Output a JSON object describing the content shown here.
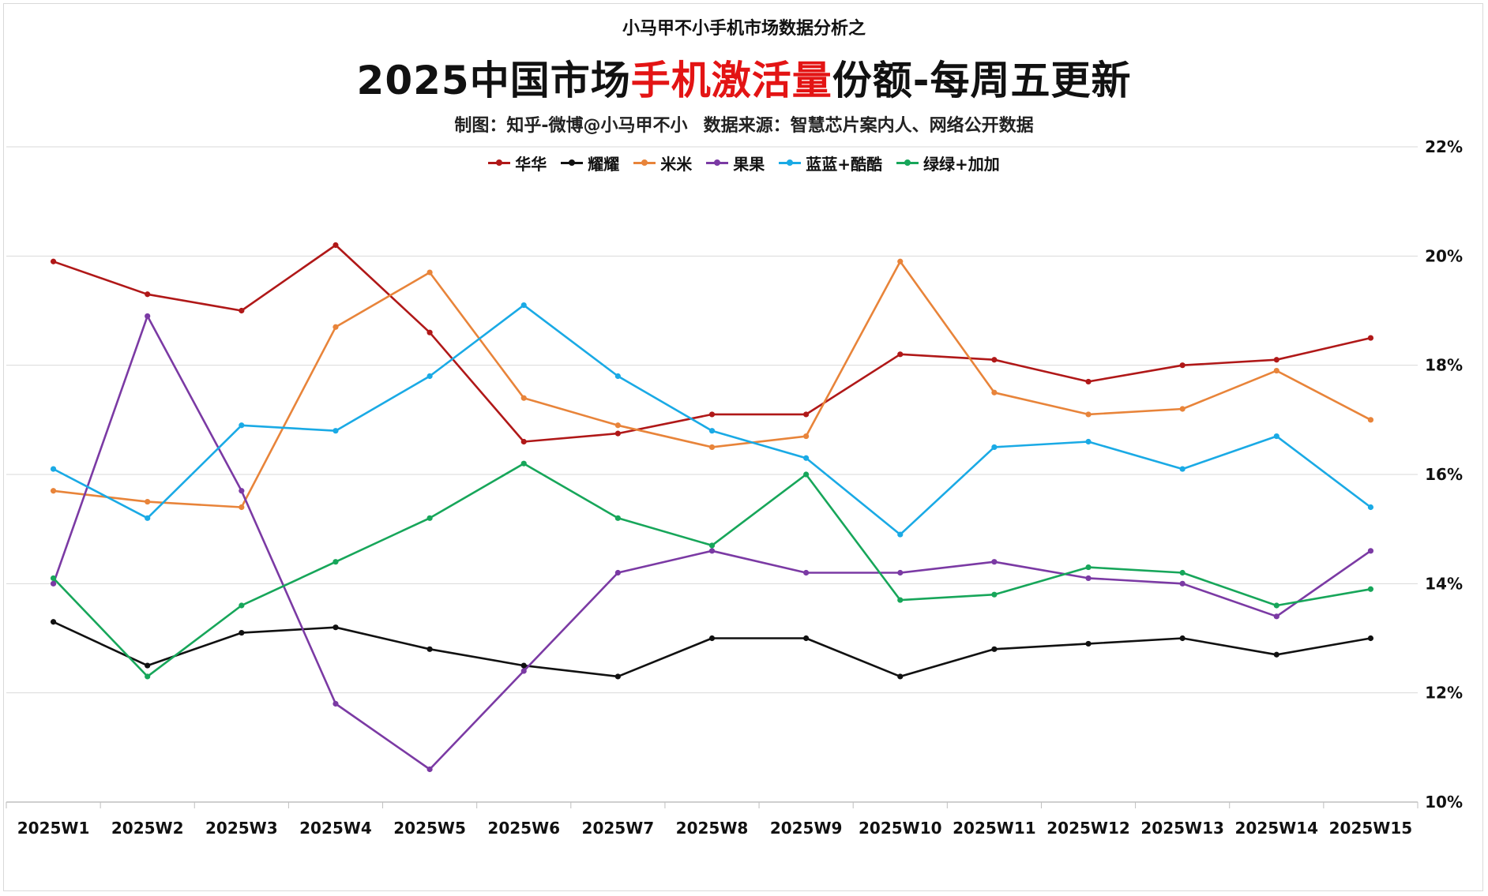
{
  "header": {
    "pretitle": "小马甲不小手机市场数据分析之",
    "title_part1": "2025中国市场",
    "title_highlight": "手机激活量",
    "title_part2": "份额-每周五更新",
    "credit_left": "制图：知乎-微博@小马甲不小",
    "credit_right": "数据来源：智慧芯片案内人、网络公开数据"
  },
  "colors": {
    "highlight": "#e31414",
    "grid": "#d9d9d9"
  },
  "chart_data": {
    "type": "line",
    "categories": [
      "2025W1",
      "2025W2",
      "2025W3",
      "2025W4",
      "2025W5",
      "2025W6",
      "2025W7",
      "2025W8",
      "2025W9",
      "2025W10",
      "2025W11",
      "2025W12",
      "2025W13",
      "2025W14",
      "2025W15"
    ],
    "y_ticks": [
      "10%",
      "12%",
      "14%",
      "16%",
      "18%",
      "20%",
      "22%"
    ],
    "ylim": [
      10,
      22
    ],
    "y_unit": "%",
    "y_axis_side": "right",
    "grid": true,
    "legend_position": "top-center",
    "series": [
      {
        "name": "华华",
        "color": "#b01818",
        "values": [
          19.9,
          19.3,
          19.0,
          20.2,
          18.6,
          16.6,
          16.75,
          17.1,
          17.1,
          18.2,
          18.1,
          17.7,
          18.0,
          18.1,
          18.5
        ]
      },
      {
        "name": "耀耀",
        "color": "#111111",
        "values": [
          13.3,
          12.5,
          13.1,
          13.2,
          12.8,
          12.5,
          12.3,
          13.0,
          13.0,
          12.3,
          12.8,
          12.9,
          13.0,
          12.7,
          13.0
        ]
      },
      {
        "name": "米米",
        "color": "#e8843a",
        "values": [
          15.7,
          15.5,
          15.4,
          18.7,
          19.7,
          17.4,
          16.9,
          16.5,
          16.7,
          19.9,
          17.5,
          17.1,
          17.2,
          17.9,
          17.0
        ]
      },
      {
        "name": "果果",
        "color": "#7b3aa4",
        "values": [
          14.0,
          18.9,
          15.7,
          11.8,
          10.6,
          12.4,
          14.2,
          14.6,
          14.2,
          14.2,
          14.4,
          14.1,
          14.0,
          13.4,
          14.6
        ]
      },
      {
        "name": "蓝蓝+酷酷",
        "color": "#1aaae5",
        "values": [
          16.1,
          15.2,
          16.9,
          16.8,
          17.8,
          19.1,
          17.8,
          16.8,
          16.3,
          14.9,
          16.5,
          16.6,
          16.1,
          16.7,
          15.4
        ]
      },
      {
        "name": "绿绿+加加",
        "color": "#17a65a",
        "values": [
          14.1,
          12.3,
          13.6,
          14.4,
          15.2,
          16.2,
          15.2,
          14.7,
          16.0,
          13.7,
          13.8,
          14.3,
          14.2,
          13.6,
          13.9
        ]
      }
    ]
  }
}
